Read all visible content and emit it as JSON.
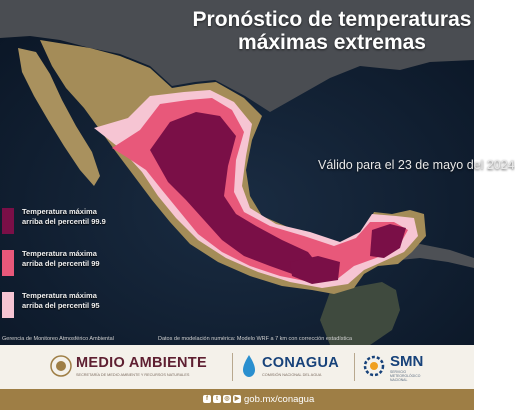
{
  "title": {
    "line1": "Pronóstico de temperaturas",
    "line2": "máximas extremas"
  },
  "valid_text": "Válido para el 23 de mayo del 2024",
  "legend": [
    {
      "color": "#7a0f47",
      "line1": "Temperatura máxima",
      "line2": "arriba del percentil 99.9"
    },
    {
      "color": "#e8587a",
      "line1": "Temperatura máxima",
      "line2": "arriba del percentil 99"
    },
    {
      "color": "#f6c5d3",
      "line1": "Temperatura máxima",
      "line2": "arriba del percentil 95"
    }
  ],
  "credits": {
    "left": "Gerencia de Monitoreo Atmosférico Ambiental",
    "right": "Datos de modelación numérica: Modelo WRF a 7 km con corrección estadística"
  },
  "logos": {
    "medio_ambiente": {
      "title": "MEDIO AMBIENTE",
      "subtitle": "SECRETARÍA DE MEDIO AMBIENTE Y RECURSOS NATURALES"
    },
    "conagua": {
      "title": "CONAGUA",
      "subtitle": "COMISIÓN NACIONAL DEL AGUA"
    },
    "smn": {
      "title": "SMN",
      "subtitle_line1": "SERVICIO",
      "subtitle_line2": "METEOROLÓGICO",
      "subtitle_line3": "NACIONAL"
    }
  },
  "footer": {
    "site": "gob.mx/conagua",
    "social_icons": [
      "facebook-icon",
      "twitter-icon",
      "instagram-icon",
      "youtube-icon"
    ]
  }
}
